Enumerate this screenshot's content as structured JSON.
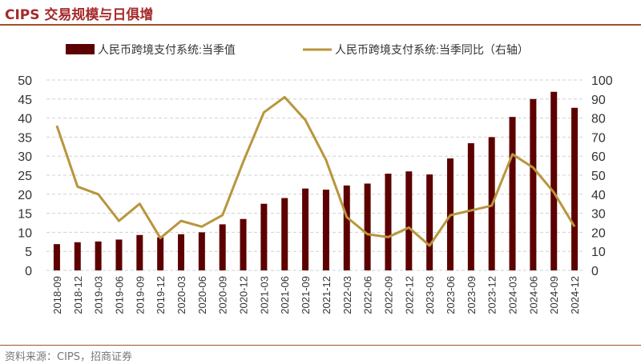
{
  "title": "CIPS 交易规模与日俱增",
  "source": "资料来源：CIPS，招商证券",
  "chart_data": {
    "type": "bar+line",
    "categories": [
      "2018-09",
      "2018-12",
      "2019-03",
      "2019-06",
      "2019-09",
      "2019-12",
      "2020-03",
      "2020-06",
      "2020-09",
      "2020-12",
      "2021-03",
      "2021-06",
      "2021-09",
      "2021-12",
      "2022-03",
      "2022-06",
      "2022-09",
      "2022-12",
      "2023-03",
      "2023-06",
      "2023-09",
      "2023-12",
      "2024-03",
      "2024-06",
      "2024-09",
      "2024-12"
    ],
    "series": [
      {
        "name": "人民币跨境支付系统:当季值",
        "type": "bar",
        "axis": "left",
        "color": "#5c0000",
        "values": [
          6.9,
          7.4,
          7.6,
          8.1,
          9.3,
          8.7,
          9.5,
          10.0,
          12.1,
          13.5,
          17.5,
          19.0,
          21.5,
          21.2,
          22.3,
          22.8,
          25.4,
          26.0,
          25.2,
          29.4,
          33.4,
          35.0,
          40.3,
          45.0,
          46.9,
          42.7
        ]
      },
      {
        "name": "人民币跨境支付系统:当季同比（右轴）",
        "type": "line",
        "axis": "right",
        "color": "#b8963e",
        "values": [
          76,
          44,
          40,
          26,
          35,
          17,
          26,
          23,
          29,
          57,
          83,
          91,
          79,
          58,
          28,
          19,
          17.5,
          22.5,
          13,
          29,
          31.5,
          34,
          61,
          54,
          41,
          23
        ]
      }
    ],
    "left_axis": {
      "range": [
        0,
        50
      ],
      "ticks": [
        "0",
        "5",
        "10",
        "15",
        "20",
        "25",
        "30",
        "35",
        "40",
        "45",
        "50"
      ]
    },
    "right_axis": {
      "range": [
        0,
        100
      ],
      "ticks": [
        "0",
        "10",
        "20",
        "30",
        "40",
        "50",
        "60",
        "70",
        "80",
        "90",
        "100"
      ]
    },
    "grid": true,
    "legend_position": "top"
  }
}
